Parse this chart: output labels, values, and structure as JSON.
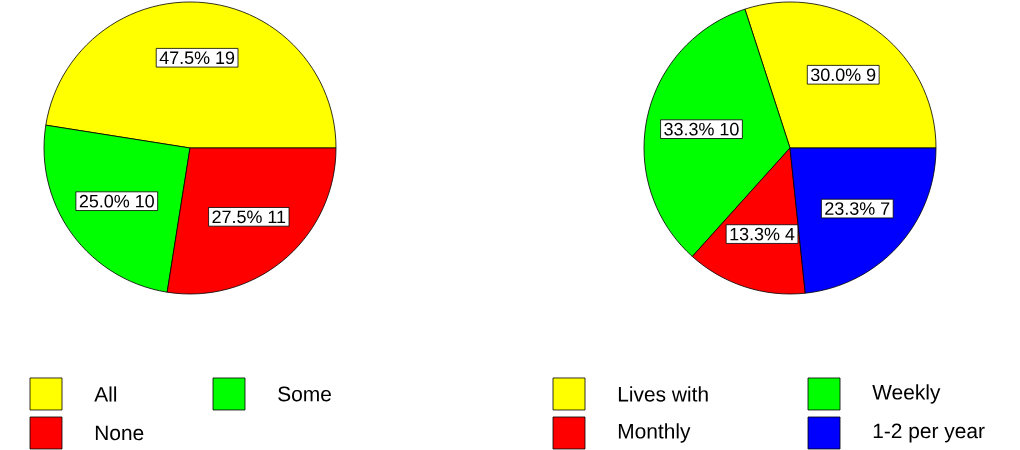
{
  "chart_data": [
    {
      "type": "pie",
      "categories": [
        "All",
        "Some",
        "None"
      ],
      "values": [
        19,
        10,
        11
      ],
      "colors": [
        "#ffff00",
        "#00ff00",
        "#ff0000"
      ],
      "value_labels": [
        "47.5% 19",
        "25.0% 10",
        "27.5% 11"
      ],
      "legend": "bottom"
    },
    {
      "type": "pie",
      "categories": [
        "Lives with",
        "Weekly",
        "Monthly",
        "1-2 per year"
      ],
      "values": [
        9,
        10,
        4,
        7
      ],
      "colors": [
        "#ffff00",
        "#00ff00",
        "#ff0000",
        "#0000ff"
      ],
      "value_labels": [
        "30.0% 9",
        "33.3% 10",
        "13.3% 4",
        "23.3% 7"
      ],
      "legend": "bottom"
    }
  ]
}
